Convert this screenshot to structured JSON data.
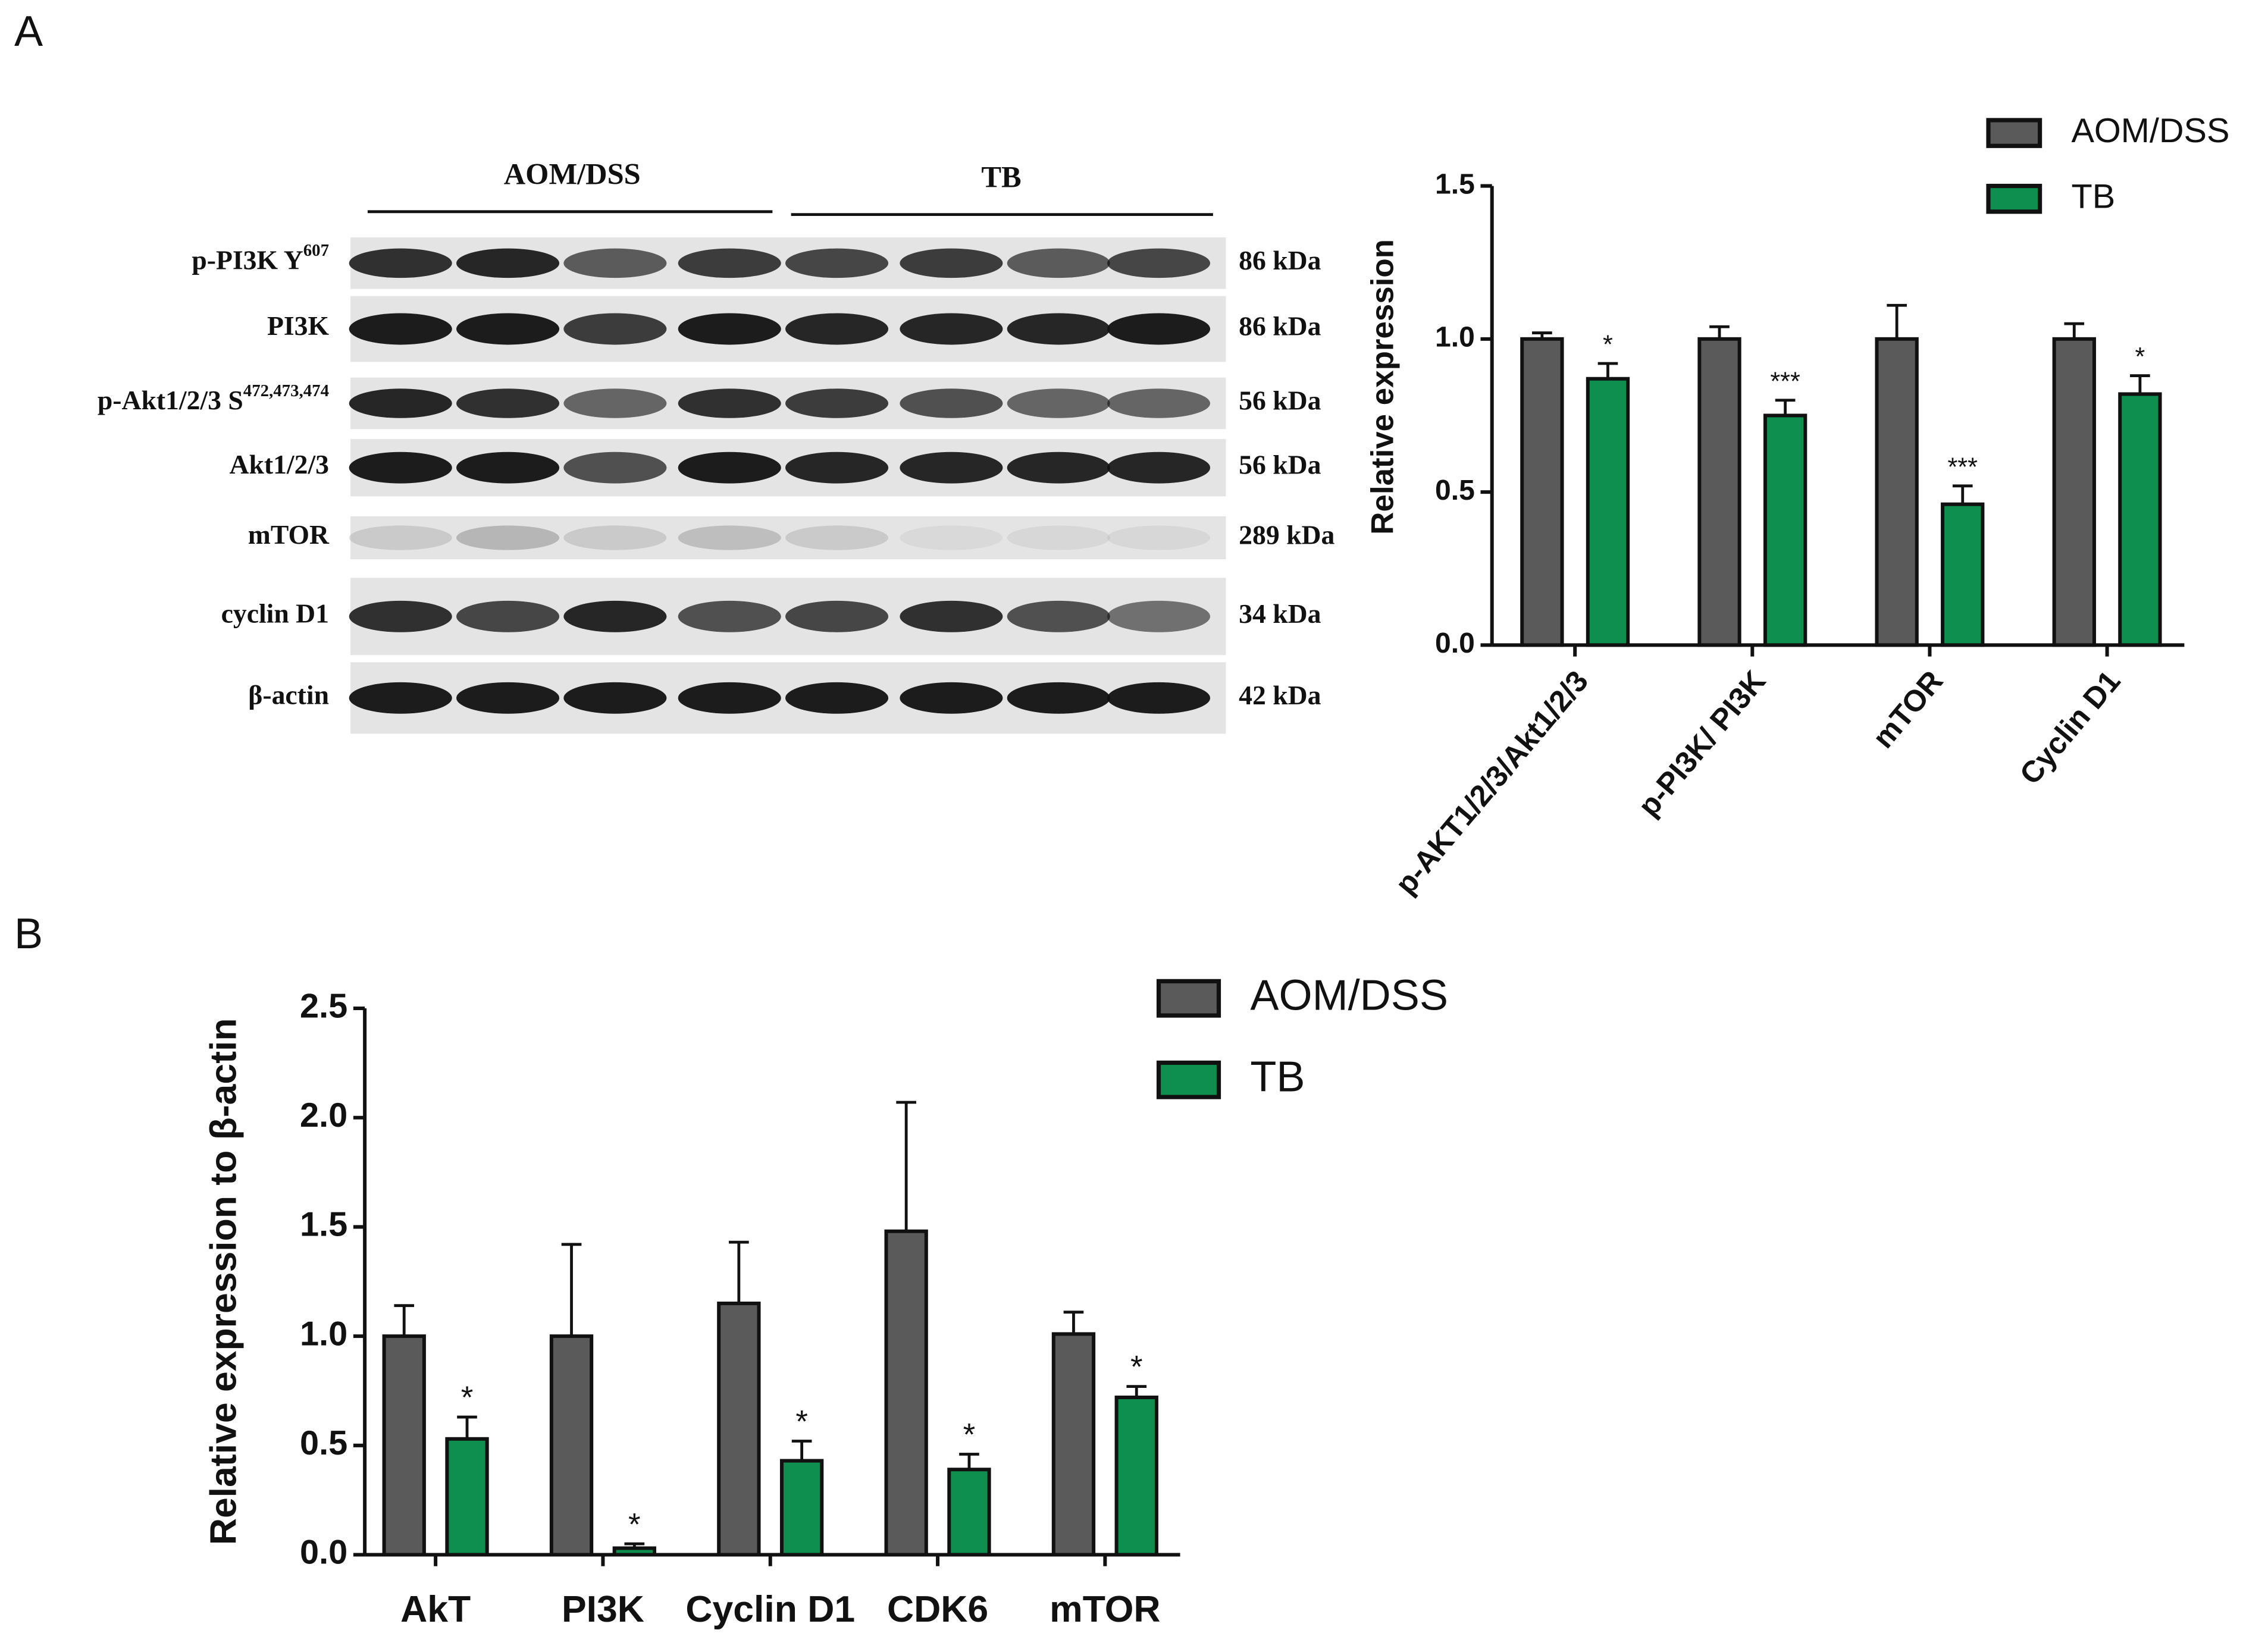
{
  "panel_labels": [
    "A",
    "B"
  ],
  "blot": {
    "groups": [
      "AOM/DSS",
      "TB"
    ],
    "rows": [
      {
        "label": "p-PI3K Y",
        "sup": "607",
        "size": "86 kDa"
      },
      {
        "label": "PI3K",
        "size": "86 kDa"
      },
      {
        "label": "p-Akt1/2/3 S",
        "sup": "472,473,474",
        "size": "56 kDa"
      },
      {
        "label": "Akt1/2/3",
        "size": "56 kDa"
      },
      {
        "label": "mTOR",
        "size": "289 kDa"
      },
      {
        "label": "cyclin D1",
        "size": "34 kDa"
      },
      {
        "label": "β-actin",
        "size": "42 kDa"
      }
    ]
  },
  "chart_data": [
    {
      "type": "bar",
      "y_label": "Relative expression",
      "categories": [
        "p-AKT1/2/3/Akt1/2/3",
        "p-PI3K/ PI3K",
        "mTOR",
        "Cyclin D1"
      ],
      "series": [
        {
          "name": "AOM/DSS",
          "color": "#5a5a5a",
          "values": [
            1.0,
            1.0,
            1.0,
            1.0
          ],
          "errors": [
            0.02,
            0.04,
            0.11,
            0.05
          ]
        },
        {
          "name": "TB",
          "color": "#0f8f4f",
          "values": [
            0.87,
            0.75,
            0.46,
            0.82
          ],
          "errors": [
            0.05,
            0.05,
            0.06,
            0.06
          ],
          "significance": [
            "*",
            "***",
            "***",
            "*"
          ]
        }
      ],
      "ylim": [
        0,
        1.5
      ],
      "yticks": [
        {
          "value": 0,
          "label": "0.0"
        },
        0.5,
        {
          "value": 1,
          "label": "1.0"
        },
        1.5
      ],
      "legend": "top-right"
    },
    {
      "type": "bar",
      "y_label": "Relative expression to β-actin",
      "categories": [
        "AkT",
        "PI3K",
        "Cyclin D1",
        "CDK6",
        "mTOR"
      ],
      "series": [
        {
          "name": "AOM/DSS",
          "color": "#5a5a5a",
          "values": [
            1.0,
            1.0,
            1.15,
            1.48,
            1.01
          ],
          "errors": [
            0.14,
            0.42,
            0.28,
            0.59,
            0.1
          ]
        },
        {
          "name": "TB",
          "color": "#0f8f4f",
          "values": [
            0.53,
            0.03,
            0.43,
            0.39,
            0.72
          ],
          "errors": [
            0.1,
            0.02,
            0.09,
            0.07,
            0.05
          ],
          "significance": [
            "*",
            "*",
            "*",
            "*",
            "*"
          ]
        }
      ],
      "ylim": [
        0,
        2.5
      ],
      "yticks": [
        {
          "value": 0,
          "label": "0.0"
        },
        0.5,
        {
          "value": 1,
          "label": "1.0"
        },
        1.5,
        {
          "value": 2,
          "label": "2.0"
        },
        2.5
      ],
      "legend": "top-right"
    }
  ]
}
